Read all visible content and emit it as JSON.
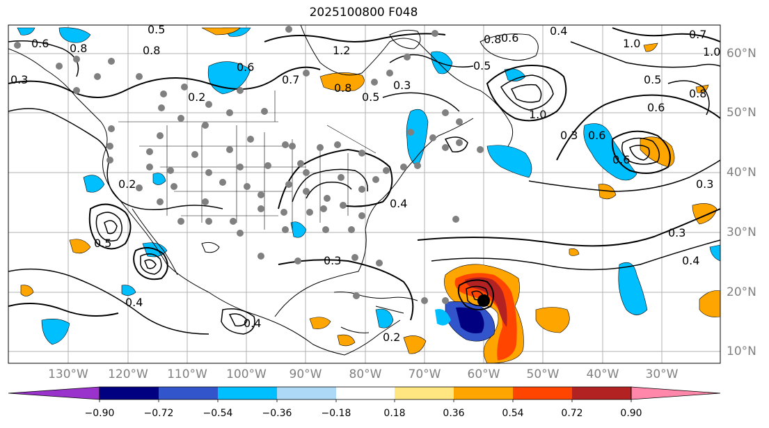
{
  "title": "2025100800 F048",
  "lat_labels": [
    "60°N",
    "50°N",
    "40°N",
    "30°N",
    "20°N",
    "10°N"
  ],
  "lon_labels": [
    "130°W",
    "120°W",
    "110°W",
    "100°W",
    "90°W",
    "80°W",
    "70°W",
    "60°W",
    "50°W",
    "40°W",
    "30°W"
  ],
  "colorbar": {
    "ticks": [
      "−0.90",
      "−0.72",
      "−0.54",
      "−0.36",
      "−0.18",
      "0.18",
      "0.36",
      "0.54",
      "0.72",
      "0.90"
    ],
    "colors": [
      "#9933cc",
      "#000080",
      "#3355cc",
      "#00bfff",
      "#add8f6",
      "#ffffff",
      "#ffe680",
      "#ffa500",
      "#ff4500",
      "#b22222",
      "#ff88aa"
    ]
  },
  "contour_labels": [
    "0.5",
    "0.6",
    "0.8",
    "0.6",
    "0.7",
    "0.2",
    "0.3",
    "0.8",
    "0.6",
    "1.0",
    "0.5",
    "0.3",
    "0.8",
    "0.6",
    "0.4",
    "0.7",
    "0.5",
    "0.6",
    "1.0",
    "0.8",
    "0.6",
    "1.0",
    "0.3",
    "0.4",
    "0.3",
    "0.5",
    "0.4",
    "0.2",
    "0.4",
    "0.2",
    "0.4",
    "0.3",
    "0.3",
    "0.5",
    "0.8",
    "1.2"
  ],
  "colors": {
    "sea_blue": "#00bfff",
    "light_blue": "#add8f6",
    "orange": "#ffa500",
    "red": "#ff4500",
    "dark_red": "#b22222",
    "navy": "#000080",
    "dot_gray": "#808080"
  },
  "storm_marker": "hurricane-center"
}
